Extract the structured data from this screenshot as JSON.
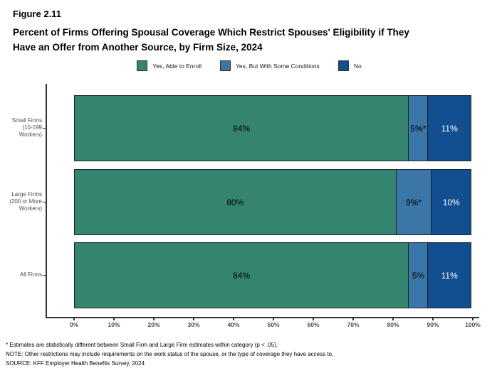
{
  "header": {
    "figure_label": "Figure 2.11",
    "title_line1": "Percent of Firms Offering Spousal Coverage Which Restrict Spouses' Eligibility if They",
    "title_line2": "Have an Offer from Another Source, by Firm Size, 2024"
  },
  "chart_data": {
    "type": "bar",
    "subtype": "horizontal-stacked",
    "title": "Percent of Firms Offering Spousal Coverage Which Restrict Spouses' Eligibility if They Have an Offer from Another Source, by Firm Size, 2024",
    "xlabel": "",
    "ylabel": "",
    "xlim": [
      0,
      100
    ],
    "grid": "off",
    "legend_position": "top",
    "categories": [
      {
        "lines": [
          "Small Firms",
          "(10-199",
          "Workers)"
        ]
      },
      {
        "lines": [
          "Large Firms",
          "(200 or More",
          "Workers)"
        ]
      },
      {
        "lines": [
          "All Firms"
        ]
      }
    ],
    "series": [
      {
        "name": "Yes, Able to Enroll",
        "color": "#35846F",
        "label_color": "#000000",
        "values": [
          84,
          80,
          84
        ],
        "labels": [
          "84%",
          "80%",
          "84%"
        ]
      },
      {
        "name": "Yes, But With Some Conditions",
        "color": "#3A76A8",
        "label_color": "#000000",
        "values": [
          5,
          9,
          5
        ],
        "labels": [
          "5%*",
          "9%*",
          "5%"
        ]
      },
      {
        "name": "No",
        "color": "#114F90",
        "label_color": "#FFFFFF",
        "values": [
          11,
          10,
          11
        ],
        "labels": [
          "11%",
          "10%",
          "11%"
        ]
      }
    ],
    "x_ticks": [
      "0%",
      "10%",
      "20%",
      "30%",
      "40%",
      "50%",
      "60%",
      "70%",
      "80%",
      "90%",
      "100%"
    ]
  },
  "footnotes": {
    "line1": "* Estimates are statistically different between Small Firm and Large Firm estimates within category (p < .05).",
    "line2": "NOTE: Other restrictions may include requirements on the work status of the spouse, or the type of coverage they have access to.",
    "line3": "SOURCE: KFF Employer Health Benefits Survey, 2024"
  }
}
